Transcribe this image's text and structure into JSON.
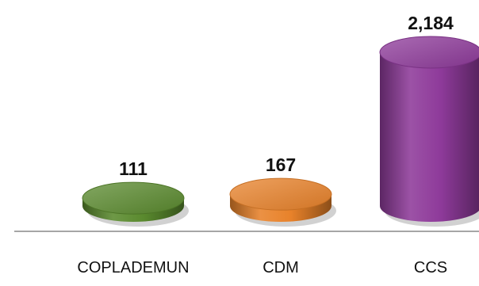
{
  "chart_data": {
    "type": "bar",
    "style": "3d-cylinder",
    "title": "",
    "xlabel": "",
    "ylabel": "",
    "categories": [
      "COPLADEMUN",
      "CDM",
      "CCS"
    ],
    "values": [
      111,
      167,
      2184
    ],
    "value_labels": [
      "111",
      "167",
      "2,184"
    ],
    "colors": [
      "#5a8a2e",
      "#e8822a",
      "#8e3a9a"
    ],
    "ylim": [
      0,
      2184
    ],
    "grid": false,
    "legend": "none"
  }
}
